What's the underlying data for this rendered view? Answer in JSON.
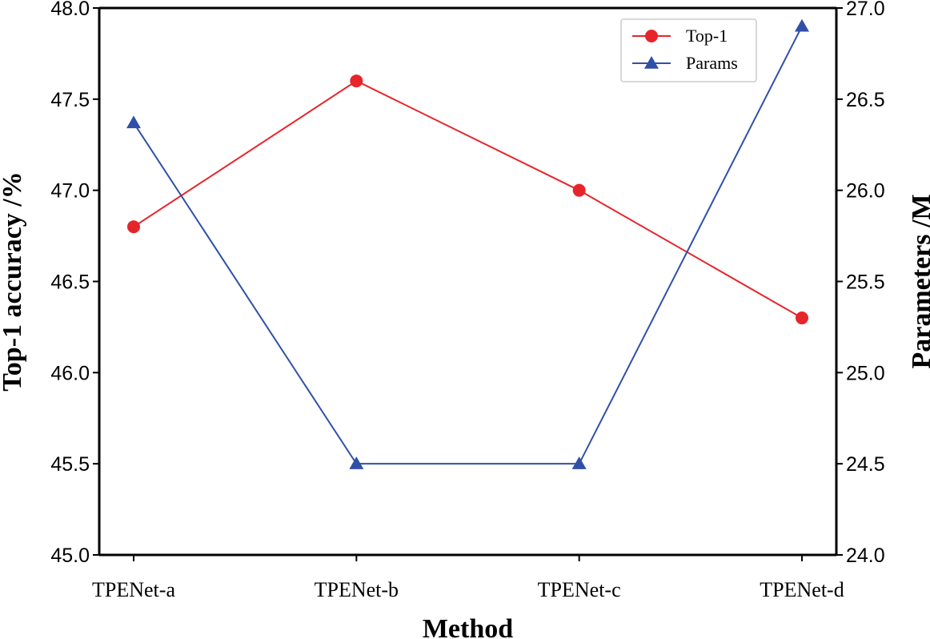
{
  "chart_data": {
    "type": "line",
    "xlabel": "Method",
    "ylabel_left": "Top-1 accuracy /%",
    "ylabel_right": "Parameters /M",
    "categories": [
      "TPENet-a",
      "TPENet-b",
      "TPENet-c",
      "TPENet-d"
    ],
    "ylim_left": [
      45.0,
      48.0
    ],
    "ylim_right": [
      24.0,
      27.0
    ],
    "yticks_left": [
      "45.0",
      "45.5",
      "46.0",
      "46.5",
      "47.0",
      "47.5",
      "48.0"
    ],
    "yticks_right": [
      "24.0",
      "24.5",
      "25.0",
      "25.5",
      "26.0",
      "26.5",
      "27.0"
    ],
    "grid": false,
    "legend_position": "top-right",
    "series": [
      {
        "name": "Top-1",
        "axis": "left",
        "marker": "circle",
        "color": "#e8242b",
        "values": [
          46.8,
          47.6,
          47.0,
          46.3
        ]
      },
      {
        "name": "Params",
        "axis": "right",
        "marker": "triangle",
        "color": "#3050a8",
        "values": [
          26.37,
          24.5,
          24.5,
          26.9
        ]
      }
    ]
  }
}
